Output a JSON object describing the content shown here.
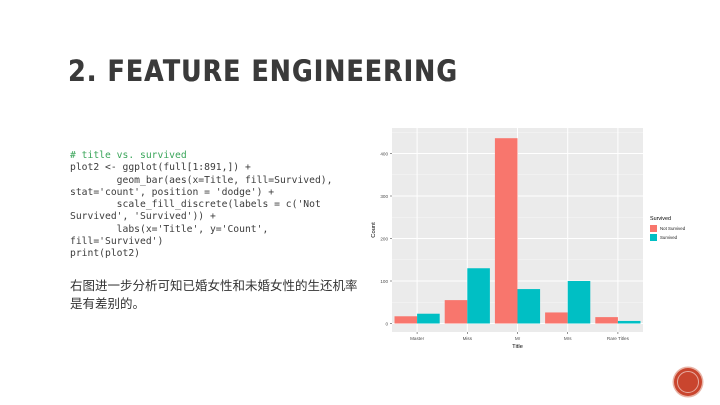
{
  "slide": {
    "title": "2. FEATURE ENGINEERING",
    "code_lines": [
      "# title vs. survived",
      "plot2 <- ggplot(full[1:891,]) +",
      "        geom_bar(aes(x=Title, fill=Survived),",
      "stat='count', position = 'dodge') +",
      "        scale_fill_discrete(labels = c('Not",
      "Survived', 'Survived')) +",
      "        labs(x='Title', y='Count',",
      "fill='Survived')",
      "print(plot2)"
    ],
    "description": "右图进一步分析可知已婚女性和未婚女性的生还机率是有差别的。"
  },
  "chart_data": {
    "type": "bar",
    "categories": [
      "Master",
      "Miss",
      "Mr",
      "Mrs",
      "Rare Titles"
    ],
    "series": [
      {
        "name": "Not Survived",
        "values": [
          17,
          55,
          436,
          26,
          15
        ],
        "color": "#F8766D"
      },
      {
        "name": "Survived",
        "values": [
          23,
          130,
          81,
          100,
          6
        ],
        "color": "#00BFC4"
      }
    ],
    "xlabel": "Title",
    "ylabel": "Count",
    "ylim": [
      -20,
      460
    ],
    "yticks": [
      0,
      100,
      200,
      300,
      400
    ],
    "legend_title": "Survived",
    "legend_position": "right",
    "grid": true,
    "panel_background": "#EBEBEB"
  }
}
